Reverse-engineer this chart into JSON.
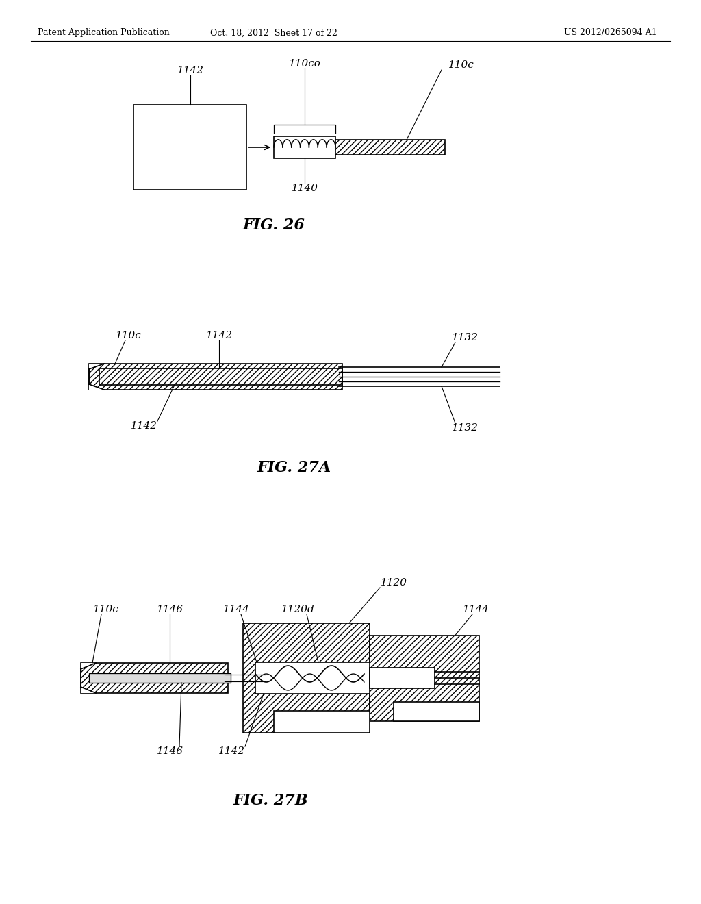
{
  "bg_color": "#ffffff",
  "line_color": "#000000",
  "header_left": "Patent Application Publication",
  "header_mid": "Oct. 18, 2012  Sheet 17 of 22",
  "header_right": "US 2012/0265094 A1",
  "fig26_label": "FIG. 26",
  "fig27a_label": "FIG. 27A",
  "fig27b_label": "FIG. 27B"
}
